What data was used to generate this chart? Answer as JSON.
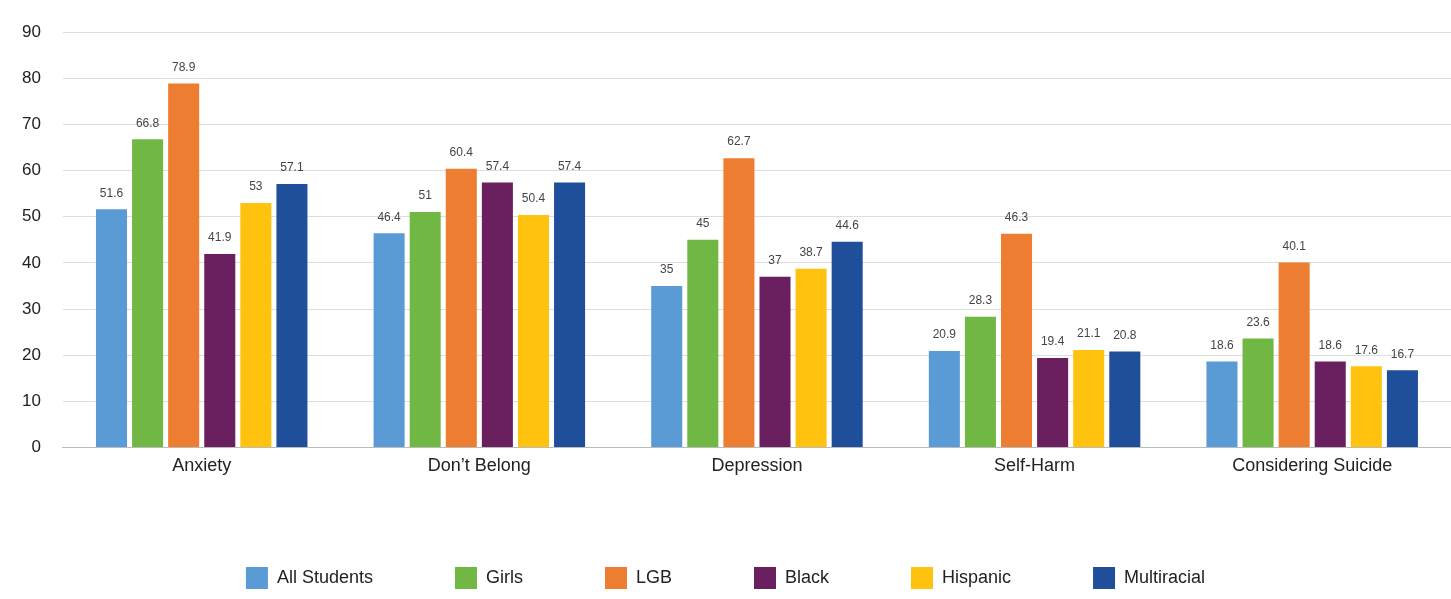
{
  "chart_data": {
    "type": "bar",
    "categories": [
      "Anxiety",
      "Don’t Belong",
      "Depression",
      "Self-Harm",
      "Considering Suicide"
    ],
    "series": [
      {
        "name": "All Students",
        "color": "#5b9bd5",
        "values": [
          51.6,
          46.4,
          35,
          20.9,
          18.6
        ]
      },
      {
        "name": "Girls",
        "color": "#70b843",
        "values": [
          66.8,
          51,
          45,
          28.3,
          23.6
        ]
      },
      {
        "name": "LGB",
        "color": "#ed7d31",
        "values": [
          78.9,
          60.4,
          62.7,
          46.3,
          40.1
        ]
      },
      {
        "name": "Black",
        "color": "#6a1f5e",
        "values": [
          41.9,
          57.4,
          37,
          19.4,
          18.6
        ]
      },
      {
        "name": "Hispanic",
        "color": "#ffc20e",
        "values": [
          53,
          50.4,
          38.7,
          21.1,
          17.6
        ]
      },
      {
        "name": "Multiracial",
        "color": "#1f4e9b",
        "values": [
          57.1,
          57.4,
          44.6,
          20.8,
          16.7
        ]
      }
    ],
    "ylim": [
      0,
      90
    ],
    "yticks": [
      0,
      10,
      20,
      30,
      40,
      50,
      60,
      70,
      80,
      90
    ],
    "grid": "y",
    "legend": "bottom",
    "data_labels": true
  }
}
